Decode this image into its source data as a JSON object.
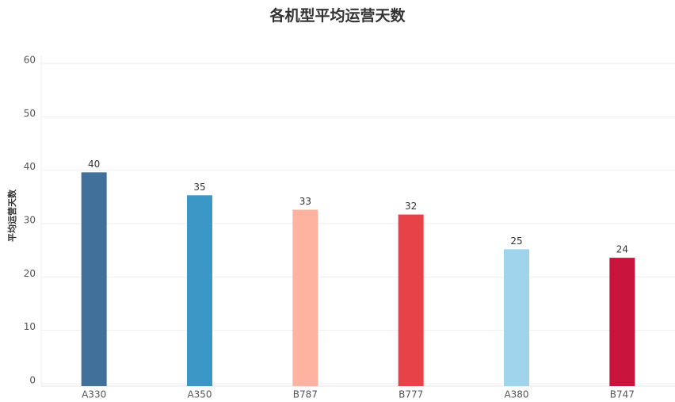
{
  "chart_data": {
    "type": "bar",
    "title": "各机型平均运营天数",
    "y_label": "平均运营天数",
    "categories": [
      "A330",
      "A350",
      "B787",
      "B777",
      "A380",
      "B747"
    ],
    "values": [
      39.6,
      35.3,
      32.6,
      31.7,
      25.2,
      23.6
    ],
    "value_labels": [
      "40",
      "35",
      "33",
      "32",
      "25",
      "24"
    ],
    "colors": [
      "#41709a",
      "#3a97c6",
      "#fdb3a0",
      "#e84249",
      "#9fd4ec",
      "#c8143c"
    ],
    "ylim": [
      0,
      60
    ],
    "yticks": [
      0,
      10,
      20,
      30,
      40,
      50,
      60
    ],
    "grid": true
  }
}
